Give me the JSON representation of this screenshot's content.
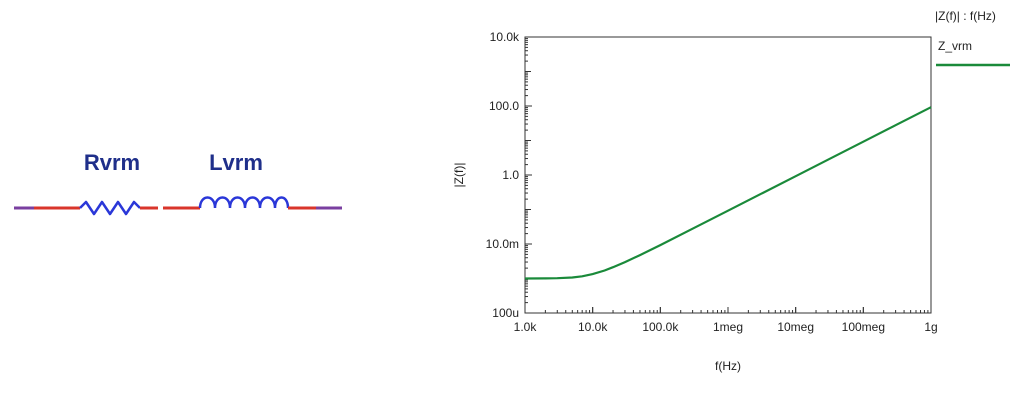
{
  "schematic": {
    "resistor_label": "Rvrm",
    "inductor_label": "Lvrm",
    "label_color": "#1f2f8a",
    "wire_color": "#d9352b",
    "component_color": "#2a37d8",
    "wire_blend_color": "#7a3fa0"
  },
  "chart_data": {
    "type": "line",
    "title": "",
    "legend_header": "|Z(f)| : f(Hz)",
    "legend_placement": "right",
    "xlabel": "f(Hz)",
    "ylabel": "|Z(f)|",
    "x_scale": "log",
    "y_scale": "log",
    "xlim": [
      1000,
      1000000000
    ],
    "ylim": [
      0.0001,
      10000
    ],
    "x_ticks": [
      {
        "value": 1000,
        "label": "1.0k"
      },
      {
        "value": 10000,
        "label": "10.0k"
      },
      {
        "value": 100000,
        "label": "100.0k"
      },
      {
        "value": 1000000,
        "label": "1meg"
      },
      {
        "value": 10000000,
        "label": "10meg"
      },
      {
        "value": 100000000,
        "label": "100meg"
      },
      {
        "value": 1000000000,
        "label": "1g"
      }
    ],
    "y_ticks": [
      {
        "value": 0.0001,
        "label": "100u"
      },
      {
        "value": 0.01,
        "label": "10.0m"
      },
      {
        "value": 1,
        "label": "1.0"
      },
      {
        "value": 100,
        "label": "100.0"
      },
      {
        "value": 10000,
        "label": "10.0k"
      }
    ],
    "grid": false,
    "series": [
      {
        "name": "Z_vrm",
        "color": "#1a8a3a",
        "x": [
          1000,
          2000,
          3000,
          5000,
          7000,
          10000,
          15000,
          20000,
          30000,
          50000,
          100000,
          300000,
          1000000,
          3000000,
          10000000,
          30000000,
          100000000,
          300000000,
          1000000000
        ],
        "y": [
          0.001,
          0.00101,
          0.00102,
          0.00107,
          0.00116,
          0.00134,
          0.0017,
          0.00212,
          0.00298,
          0.00476,
          0.00932,
          0.0278,
          0.0924,
          0.277,
          0.924,
          2.77,
          9.24,
          27.7,
          92.4
        ]
      }
    ]
  }
}
